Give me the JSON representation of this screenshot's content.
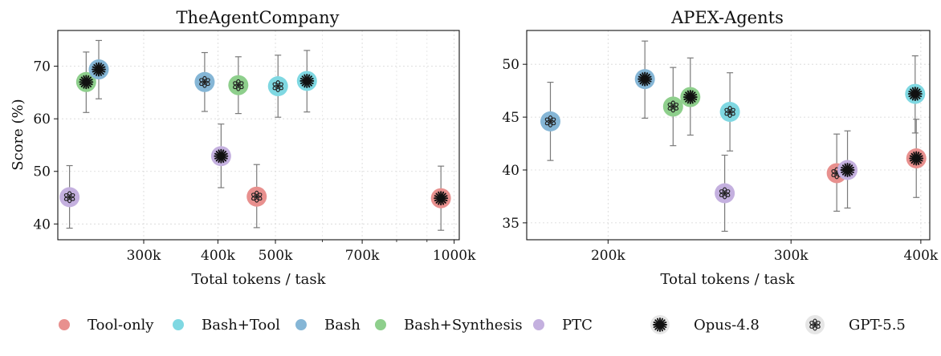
{
  "chart_data": [
    {
      "type": "scatter",
      "title": "TheAgentCompany",
      "xlabel": "Total tokens / task",
      "ylabel": "Score (%)",
      "x_scale": "log",
      "xlim": [
        215000,
        1020000
      ],
      "ylim": [
        37,
        76.8
      ],
      "x_ticks": [
        300000,
        400000,
        500000,
        700000,
        1000000
      ],
      "x_tick_labels": [
        "300k",
        "400k",
        "500k",
        "700k",
        "1000k"
      ],
      "x_minor_ticks": [
        600000,
        800000,
        900000
      ],
      "y_ticks": [
        40,
        50,
        60,
        70
      ],
      "y_tick_labels": [
        "40",
        "50",
        "60",
        "70"
      ],
      "grid": true,
      "points": [
        {
          "x": 225000,
          "y": 45.1,
          "lo": 39.2,
          "hi": 51.1,
          "series": "PTC",
          "model": "GPT-5.5"
        },
        {
          "x": 240000,
          "y": 67.0,
          "lo": 61.2,
          "hi": 72.7,
          "series": "Bash+Synthesis",
          "model": "Opus-4.8"
        },
        {
          "x": 252000,
          "y": 69.4,
          "lo": 63.8,
          "hi": 74.9,
          "series": "Bash",
          "model": "Opus-4.8"
        },
        {
          "x": 380000,
          "y": 67.0,
          "lo": 61.4,
          "hi": 72.6,
          "series": "Bash",
          "model": "GPT-5.5"
        },
        {
          "x": 405000,
          "y": 52.9,
          "lo": 46.9,
          "hi": 59.0,
          "series": "PTC",
          "model": "Opus-4.8"
        },
        {
          "x": 433000,
          "y": 66.4,
          "lo": 61.0,
          "hi": 71.8,
          "series": "Bash+Synthesis",
          "model": "GPT-5.5"
        },
        {
          "x": 465000,
          "y": 45.2,
          "lo": 39.3,
          "hi": 51.3,
          "series": "Tool-only",
          "model": "GPT-5.5"
        },
        {
          "x": 505000,
          "y": 66.2,
          "lo": 60.3,
          "hi": 72.1,
          "series": "Bash+Tool",
          "model": "GPT-5.5"
        },
        {
          "x": 565000,
          "y": 67.2,
          "lo": 61.3,
          "hi": 73.0,
          "series": "Bash+Tool",
          "model": "Opus-4.8"
        },
        {
          "x": 950000,
          "y": 44.9,
          "lo": 38.8,
          "hi": 51.0,
          "series": "Tool-only",
          "model": "Opus-4.8"
        }
      ]
    },
    {
      "type": "scatter",
      "title": "APEX-Agents",
      "xlabel": "Total tokens / task",
      "ylabel": "",
      "x_scale": "log",
      "xlim": [
        167000,
        408000
      ],
      "ylim": [
        33.4,
        53.2
      ],
      "x_ticks": [
        200000,
        300000,
        400000
      ],
      "x_tick_labels": [
        "200k",
        "300k",
        "400k"
      ],
      "x_minor_ticks": [],
      "y_ticks": [
        35,
        40,
        45,
        50
      ],
      "y_tick_labels": [
        "35",
        "40",
        "45",
        "50"
      ],
      "grid": true,
      "points": [
        {
          "x": 176000,
          "y": 44.6,
          "lo": 40.9,
          "hi": 48.3,
          "series": "Bash",
          "model": "GPT-5.5"
        },
        {
          "x": 217000,
          "y": 48.6,
          "lo": 44.9,
          "hi": 52.2,
          "series": "Bash",
          "model": "Opus-4.8"
        },
        {
          "x": 231000,
          "y": 46.0,
          "lo": 42.3,
          "hi": 49.7,
          "series": "Bash+Synthesis",
          "model": "GPT-5.5"
        },
        {
          "x": 240000,
          "y": 46.9,
          "lo": 43.3,
          "hi": 50.6,
          "series": "Bash+Synthesis",
          "model": "Opus-4.8"
        },
        {
          "x": 259000,
          "y": 37.8,
          "lo": 34.2,
          "hi": 41.4,
          "series": "PTC",
          "model": "GPT-5.5"
        },
        {
          "x": 262000,
          "y": 45.5,
          "lo": 41.8,
          "hi": 49.2,
          "series": "Bash+Tool",
          "model": "GPT-5.5"
        },
        {
          "x": 332000,
          "y": 39.7,
          "lo": 36.1,
          "hi": 43.4,
          "series": "Tool-only",
          "model": "GPT-5.5"
        },
        {
          "x": 340000,
          "y": 40.0,
          "lo": 36.4,
          "hi": 43.7,
          "series": "PTC",
          "model": "Opus-4.8"
        },
        {
          "x": 395000,
          "y": 47.2,
          "lo": 43.5,
          "hi": 50.8,
          "series": "Bash+Tool",
          "model": "Opus-4.8"
        },
        {
          "x": 396000,
          "y": 41.1,
          "lo": 37.4,
          "hi": 44.8,
          "series": "Tool-only",
          "model": "Opus-4.8"
        }
      ]
    }
  ],
  "legend": {
    "placement": "bottom",
    "series": [
      {
        "name": "Tool-only",
        "color": "#e8908e"
      },
      {
        "name": "Bash+Tool",
        "color": "#7fd8e2"
      },
      {
        "name": "Bash",
        "color": "#85b6d6"
      },
      {
        "name": "Bash+Synthesis",
        "color": "#8ecf8c"
      },
      {
        "name": "PTC",
        "color": "#c4b0df"
      }
    ],
    "models": [
      {
        "name": "Opus-4.8",
        "icon": "asterisk-icon"
      },
      {
        "name": "GPT-5.5",
        "icon": "openai-knot-icon"
      }
    ]
  }
}
